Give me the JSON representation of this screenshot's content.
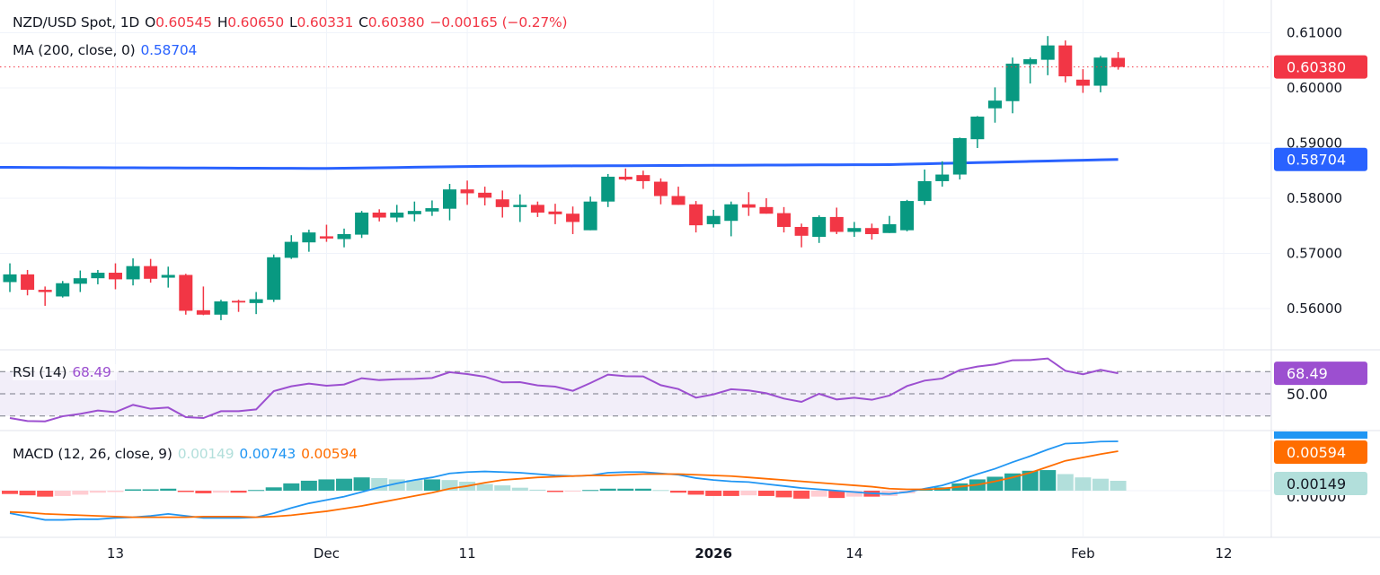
{
  "header": {
    "symbol": "NZD/USD Spot, 1D",
    "o_label": "O",
    "o_value": "0.60545",
    "h_label": "H",
    "h_value": "0.60650",
    "l_label": "L",
    "l_value": "0.60331",
    "c_label": "C",
    "c_value": "0.60380",
    "change": "−0.00165 (−0.27%)"
  },
  "ma_legend": {
    "label": "MA (200, close, 0)",
    "value": "0.58704"
  },
  "rsi_legend": {
    "label": "RSI (14)",
    "value": "68.49"
  },
  "macd_legend": {
    "label": "MACD (12, 26, close, 9)",
    "hist": "0.00149",
    "macd": "0.00743",
    "signal": "0.00594"
  },
  "colors": {
    "up": "#089981",
    "down": "#F23645",
    "ma": "#2962FF",
    "rsi": "#9C4FD0",
    "macd": "#2196F3",
    "signal": "#FF6D00",
    "hist_up_strong": "#26A69A",
    "hist_up_weak": "#B2DFDB",
    "hist_down_strong": "#FF5252",
    "hist_down_weak": "#FFCDD2"
  },
  "chart_data": [
    {
      "type": "candlestick",
      "title": "NZD/USD Spot, 1D",
      "y_ticks": [
        "0.61000",
        "0.60000",
        "0.59000",
        "0.58000",
        "0.57000",
        "0.56000"
      ],
      "ylim": [
        0.5535,
        0.6159
      ],
      "x_ticks": [
        {
          "i": 6,
          "label": "13"
        },
        {
          "i": 18,
          "label": "Dec"
        },
        {
          "i": 26,
          "label": "11"
        },
        {
          "i": 40,
          "label": "2026",
          "bold": true
        },
        {
          "i": 48,
          "label": "14"
        },
        {
          "i": 61,
          "label": "Feb"
        },
        {
          "i": 69,
          "label": "12"
        }
      ],
      "last_price_tag": "0.60380",
      "ma_tag": "0.58704",
      "ohlc": [
        [
          0.5648,
          0.5682,
          0.563,
          0.5662
        ],
        [
          0.5662,
          0.567,
          0.5624,
          0.5634
        ],
        [
          0.5634,
          0.564,
          0.5605,
          0.563
        ],
        [
          0.5622,
          0.565,
          0.562,
          0.5646
        ],
        [
          0.5645,
          0.5669,
          0.563,
          0.5655
        ],
        [
          0.5655,
          0.567,
          0.5644,
          0.5665
        ],
        [
          0.5665,
          0.5682,
          0.5635,
          0.5653
        ],
        [
          0.5653,
          0.5691,
          0.5642,
          0.5677
        ],
        [
          0.5677,
          0.569,
          0.5647,
          0.5654
        ],
        [
          0.5656,
          0.5676,
          0.5638,
          0.5661
        ],
        [
          0.5661,
          0.5663,
          0.5589,
          0.5596
        ],
        [
          0.5597,
          0.564,
          0.5588,
          0.5589
        ],
        [
          0.5589,
          0.5616,
          0.5579,
          0.5613
        ],
        [
          0.5614,
          0.5616,
          0.5594,
          0.5611
        ],
        [
          0.561,
          0.563,
          0.559,
          0.5617
        ],
        [
          0.5616,
          0.5698,
          0.5612,
          0.5693
        ],
        [
          0.5692,
          0.5733,
          0.569,
          0.5721
        ],
        [
          0.572,
          0.5743,
          0.5703,
          0.5738
        ],
        [
          0.5731,
          0.5752,
          0.5721,
          0.5727
        ],
        [
          0.5726,
          0.5745,
          0.5711,
          0.5735
        ],
        [
          0.5734,
          0.5777,
          0.5728,
          0.5774
        ],
        [
          0.5774,
          0.578,
          0.5758,
          0.5765
        ],
        [
          0.5765,
          0.5788,
          0.5757,
          0.5774
        ],
        [
          0.5771,
          0.5794,
          0.5758,
          0.5777
        ],
        [
          0.5776,
          0.5796,
          0.5768,
          0.5782
        ],
        [
          0.5781,
          0.5826,
          0.576,
          0.5816
        ],
        [
          0.5816,
          0.5832,
          0.5788,
          0.5809
        ],
        [
          0.581,
          0.5821,
          0.5787,
          0.5801
        ],
        [
          0.5798,
          0.5814,
          0.5765,
          0.5784
        ],
        [
          0.5784,
          0.5807,
          0.5757,
          0.5788
        ],
        [
          0.5788,
          0.5794,
          0.5766,
          0.5774
        ],
        [
          0.5776,
          0.579,
          0.5753,
          0.5771
        ],
        [
          0.5772,
          0.5785,
          0.5735,
          0.5757
        ],
        [
          0.5742,
          0.5803,
          0.5742,
          0.5794
        ],
        [
          0.5794,
          0.5844,
          0.5784,
          0.5839
        ],
        [
          0.5839,
          0.5854,
          0.5832,
          0.5834
        ],
        [
          0.5842,
          0.585,
          0.5817,
          0.5831
        ],
        [
          0.583,
          0.5836,
          0.5789,
          0.5804
        ],
        [
          0.5804,
          0.5821,
          0.5788,
          0.5788
        ],
        [
          0.5789,
          0.5795,
          0.5738,
          0.5751
        ],
        [
          0.5753,
          0.5779,
          0.5747,
          0.5768
        ],
        [
          0.5759,
          0.5794,
          0.5731,
          0.5789
        ],
        [
          0.5789,
          0.5811,
          0.5768,
          0.5783
        ],
        [
          0.5784,
          0.58,
          0.5772,
          0.5772
        ],
        [
          0.5773,
          0.5784,
          0.5738,
          0.5748
        ],
        [
          0.5748,
          0.5754,
          0.5711,
          0.5732
        ],
        [
          0.573,
          0.5769,
          0.5719,
          0.5766
        ],
        [
          0.5766,
          0.5783,
          0.5735,
          0.5739
        ],
        [
          0.5739,
          0.5757,
          0.573,
          0.5746
        ],
        [
          0.5746,
          0.5754,
          0.5725,
          0.5735
        ],
        [
          0.5737,
          0.5768,
          0.5737,
          0.5753
        ],
        [
          0.5742,
          0.5797,
          0.574,
          0.5795
        ],
        [
          0.5795,
          0.5852,
          0.5788,
          0.5831
        ],
        [
          0.5831,
          0.5867,
          0.5821,
          0.5843
        ],
        [
          0.5843,
          0.591,
          0.5834,
          0.5909
        ],
        [
          0.5907,
          0.5949,
          0.5891,
          0.5948
        ],
        [
          0.5963,
          0.6001,
          0.5937,
          0.5977
        ],
        [
          0.5976,
          0.6055,
          0.5954,
          0.6044
        ],
        [
          0.6043,
          0.6055,
          0.6008,
          0.6052
        ],
        [
          0.6051,
          0.6094,
          0.6023,
          0.6077
        ],
        [
          0.6077,
          0.6086,
          0.601,
          0.6021
        ],
        [
          0.6015,
          0.6034,
          0.5991,
          0.6004
        ],
        [
          0.6004,
          0.6058,
          0.5992,
          0.6055
        ],
        [
          0.60545,
          0.6065,
          0.60331,
          0.6038
        ]
      ],
      "ma200": [
        {
          "i": 0,
          "v": 0.5856
        },
        {
          "i": 18,
          "v": 0.5854
        },
        {
          "i": 27,
          "v": 0.5858
        },
        {
          "i": 50,
          "v": 0.5861
        },
        {
          "i": 63,
          "v": 0.58704
        }
      ]
    },
    {
      "type": "line",
      "name": "RSI (14)",
      "ylim": [
        22,
        90
      ],
      "levels": [
        70,
        50,
        30
      ],
      "y_ticks": [
        "50.00"
      ],
      "tag": "68.49",
      "values": [
        28.1,
        25.4,
        25.1,
        29.7,
        31.9,
        34.9,
        33.5,
        40.0,
        36.5,
        37.6,
        28.9,
        28.1,
        34.3,
        34.3,
        35.9,
        52.4,
        56.8,
        59.2,
        57.3,
        58.4,
        64.1,
        62.4,
        63.2,
        63.5,
        64.3,
        69.5,
        67.8,
        65.4,
        60.3,
        60.5,
        57.6,
        56.5,
        52.7,
        59.7,
        67.3,
        65.9,
        65.7,
        57.8,
        54.3,
        46.5,
        49.5,
        54.1,
        53.0,
        50.5,
        45.7,
        42.7,
        50.0,
        44.9,
        46.5,
        44.6,
        48.4,
        57.0,
        61.9,
        63.8,
        71.4,
        74.6,
        76.5,
        80.3,
        80.5,
        81.9,
        70.8,
        67.6,
        71.6,
        68.49
      ]
    },
    {
      "type": "bar+line",
      "name": "MACD (12, 26, close, 9)",
      "y_ticks": [
        "0.00000"
      ],
      "tags": {
        "macd": "0.00743",
        "signal": "0.00594",
        "hist": "0.00149"
      },
      "histogram": [
        -0.0005,
        -0.0007,
        -0.0009,
        -0.0008,
        -0.0006,
        -0.0003,
        -0.0002,
        0.0002,
        0.0002,
        0.0003,
        -0.0002,
        -0.0004,
        -0.0003,
        -0.0003,
        0.0001,
        0.0005,
        0.0011,
        0.0015,
        0.0017,
        0.0018,
        0.002,
        0.0019,
        0.0017,
        0.0016,
        0.0017,
        0.0016,
        0.00135,
        0.001,
        0.0008,
        0.00045,
        0.00015,
        -0.0002,
        -0.0001,
        0.0001,
        0.0003,
        0.0003,
        0.0003,
        0.0001,
        -0.0003,
        -0.0006,
        -0.0008,
        -0.0008,
        -0.0007,
        -0.0008,
        -0.001,
        -0.0012,
        -0.0009,
        -0.0011,
        -0.0009,
        -0.0009,
        -0.0008,
        -0.0004,
        0.0002,
        0.0005,
        0.0011,
        0.0017,
        0.0021,
        0.0026,
        0.003,
        0.0031,
        0.0025,
        0.002,
        0.0018,
        0.00149
      ],
      "macd": [
        -0.0034,
        -0.0039,
        -0.0044,
        -0.0044,
        -0.0043,
        -0.0043,
        -0.0041,
        -0.004,
        -0.0038,
        -0.0035,
        -0.0038,
        -0.0041,
        -0.0041,
        -0.0041,
        -0.004,
        -0.0034,
        -0.0026,
        -0.0019,
        -0.0014,
        -0.0009,
        -0.0002,
        0.0005,
        0.0011,
        0.0016,
        0.002,
        0.0026,
        0.0028,
        0.0029,
        0.0028,
        0.0027,
        0.0025,
        0.0023,
        0.0022,
        0.0023,
        0.0027,
        0.0028,
        0.0028,
        0.0026,
        0.0024,
        0.0019,
        0.0016,
        0.0014,
        0.0013,
        0.001,
        0.0007,
        0.0004,
        0.0002,
        0.0,
        -0.0002,
        -0.0004,
        -0.0005,
        -0.0002,
        0.0003,
        0.0008,
        0.0016,
        0.0025,
        0.0033,
        0.0043,
        0.0052,
        0.0062,
        0.0071,
        0.0072,
        0.0074,
        0.00743
      ],
      "signal": [
        -0.0032,
        -0.0033,
        -0.0035,
        -0.0036,
        -0.0037,
        -0.0038,
        -0.0039,
        -0.004,
        -0.004,
        -0.004,
        -0.004,
        -0.0039,
        -0.0039,
        -0.0039,
        -0.004,
        -0.0039,
        -0.0037,
        -0.0034,
        -0.0031,
        -0.0027,
        -0.0023,
        -0.0018,
        -0.0013,
        -0.0008,
        -0.0003,
        0.0003,
        0.0007,
        0.0012,
        0.0016,
        0.0018,
        0.002,
        0.0021,
        0.0022,
        0.0023,
        0.0023,
        0.0024,
        0.0025,
        0.0025,
        0.0025,
        0.0024,
        0.0023,
        0.0022,
        0.002,
        0.0018,
        0.0016,
        0.0014,
        0.0012,
        0.001,
        0.0008,
        0.0006,
        0.0003,
        0.0002,
        0.0002,
        0.0003,
        0.0006,
        0.0009,
        0.0014,
        0.002,
        0.0027,
        0.0036,
        0.0045,
        0.005,
        0.0055,
        0.00594
      ]
    }
  ]
}
